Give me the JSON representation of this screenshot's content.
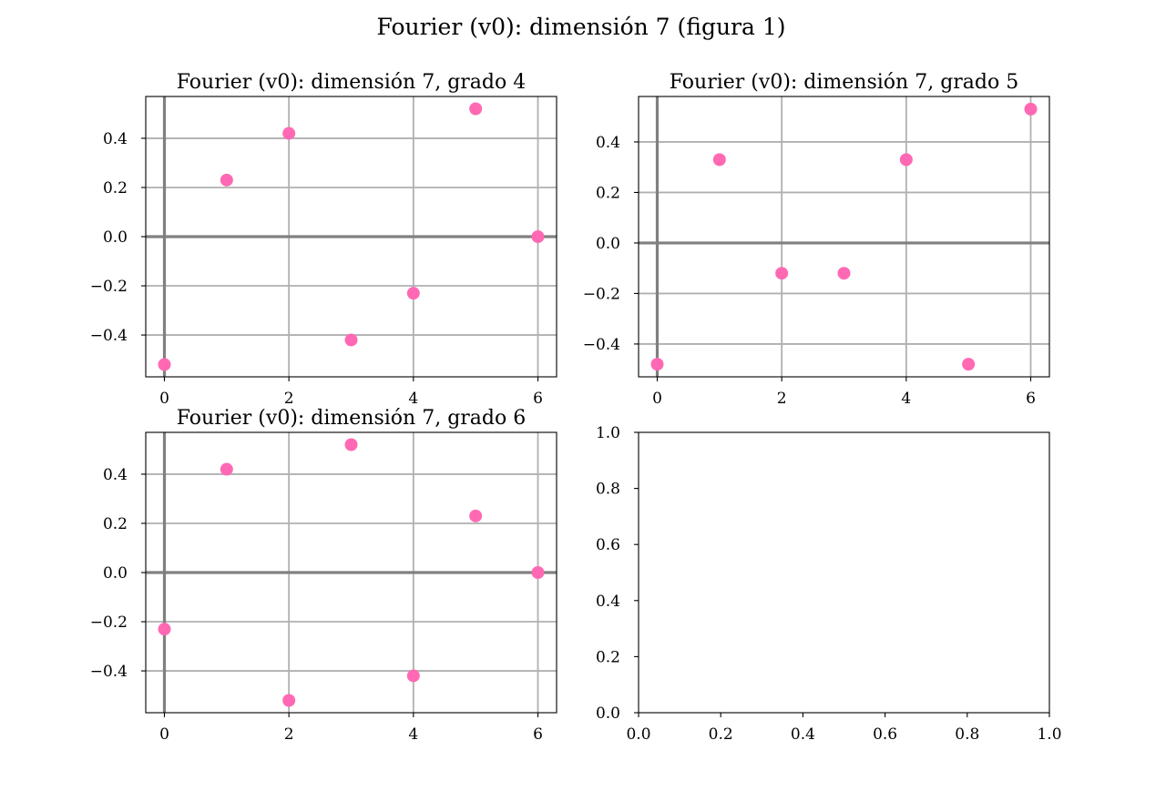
{
  "figure_title": "Fourier (v0): dimensión 7 (figura 1)",
  "chart_data": [
    {
      "type": "scatter",
      "title": "Fourier (v0): dimensión 7, grado 4",
      "x": [
        0,
        1,
        2,
        3,
        4,
        5,
        6
      ],
      "y": [
        -0.52,
        0.23,
        0.42,
        -0.42,
        -0.23,
        0.52,
        0.0
      ],
      "xlim": [
        -0.3,
        6.3
      ],
      "ylim": [
        -0.57,
        0.57
      ],
      "xticks": [
        0,
        2,
        4,
        6
      ],
      "xtick_labels": [
        "0",
        "2",
        "4",
        "6"
      ],
      "yticks": [
        -0.4,
        -0.2,
        0.0,
        0.2,
        0.4
      ],
      "ytick_labels": [
        "−0.4",
        "−0.2",
        "0.0",
        "0.2",
        "0.4"
      ],
      "grid": true,
      "axis_lines": true,
      "marker_color": "#ff69b4"
    },
    {
      "type": "scatter",
      "title": "Fourier (v0): dimensión 7, grado 5",
      "x": [
        0,
        1,
        2,
        3,
        4,
        5,
        6
      ],
      "y": [
        -0.48,
        0.33,
        -0.12,
        -0.12,
        0.33,
        -0.48,
        0.53
      ],
      "xlim": [
        -0.3,
        6.3
      ],
      "ylim": [
        -0.53,
        0.58
      ],
      "xticks": [
        0,
        2,
        4,
        6
      ],
      "xtick_labels": [
        "0",
        "2",
        "4",
        "6"
      ],
      "yticks": [
        -0.4,
        -0.2,
        0.0,
        0.2,
        0.4
      ],
      "ytick_labels": [
        "−0.4",
        "−0.2",
        "0.0",
        "0.2",
        "0.4"
      ],
      "grid": true,
      "axis_lines": true,
      "marker_color": "#ff69b4"
    },
    {
      "type": "scatter",
      "title": "Fourier (v0): dimensión 7, grado 6",
      "x": [
        0,
        1,
        2,
        3,
        4,
        5,
        6
      ],
      "y": [
        -0.23,
        0.42,
        -0.52,
        0.52,
        -0.42,
        0.23,
        0.0
      ],
      "xlim": [
        -0.3,
        6.3
      ],
      "ylim": [
        -0.57,
        0.57
      ],
      "xticks": [
        0,
        2,
        4,
        6
      ],
      "xtick_labels": [
        "0",
        "2",
        "4",
        "6"
      ],
      "yticks": [
        -0.4,
        -0.2,
        0.0,
        0.2,
        0.4
      ],
      "ytick_labels": [
        "−0.4",
        "−0.2",
        "0.0",
        "0.2",
        "0.4"
      ],
      "grid": true,
      "axis_lines": true,
      "marker_color": "#ff69b4"
    },
    {
      "type": "scatter",
      "title": "",
      "x": [],
      "y": [],
      "xlim": [
        0,
        1
      ],
      "ylim": [
        0,
        1
      ],
      "xticks": [
        0,
        0.2,
        0.4,
        0.6,
        0.8,
        1.0
      ],
      "xtick_labels": [
        "0.0",
        "0.2",
        "0.4",
        "0.6",
        "0.8",
        "1.0"
      ],
      "yticks": [
        0,
        0.2,
        0.4,
        0.6,
        0.8,
        1.0
      ],
      "ytick_labels": [
        "0.0",
        "0.2",
        "0.4",
        "0.6",
        "0.8",
        "1.0"
      ],
      "grid": false,
      "axis_lines": false,
      "marker_color": "#ff69b4"
    }
  ]
}
